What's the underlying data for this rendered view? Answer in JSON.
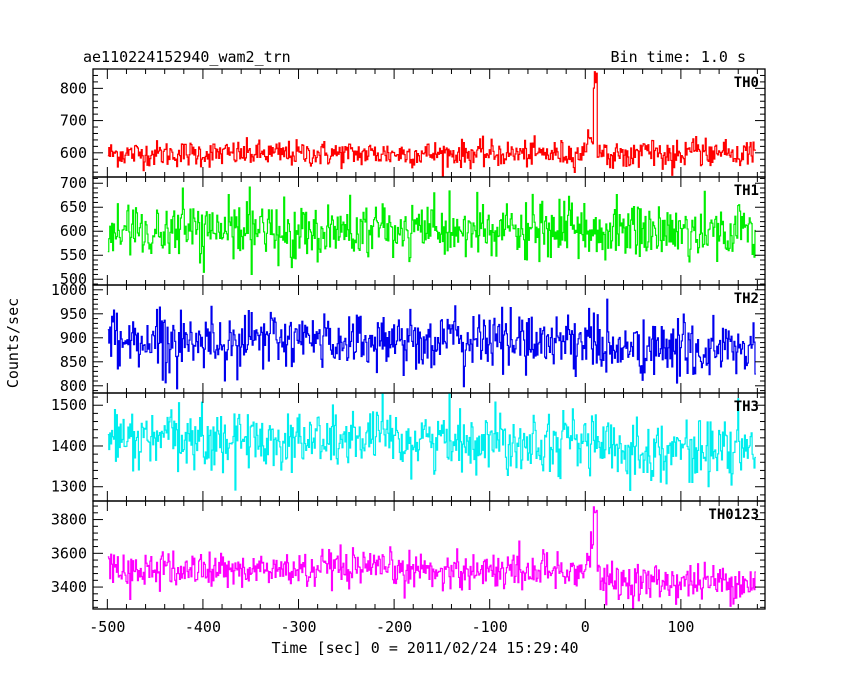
{
  "header": {
    "left_title": "ae110224152940_wam2_trn",
    "right_title": "Bin time: 1.0 s"
  },
  "chart_data": {
    "type": "line",
    "xlabel": "Time [sec] 0 = 2011/02/24 15:29:40",
    "ylabel": "Counts/sec",
    "xlim": [
      -515,
      188
    ],
    "x_ticks": [
      -500,
      -400,
      -300,
      -200,
      -100,
      0,
      100
    ],
    "x_range_data": [
      -499,
      178
    ],
    "bin_time_s": 1.0,
    "panels": [
      {
        "name": "TH0",
        "color": "#ff0000",
        "ylim": [
          525,
          860
        ],
        "y_ticks": [
          600,
          700,
          800
        ],
        "baseline": 597,
        "noise": 20,
        "shift_after_burst": 0,
        "burst": {
          "peak_time": 10,
          "peak_value": 860,
          "pre_level": 680
        }
      },
      {
        "name": "TH1",
        "color": "#00ee00",
        "ylim": [
          488,
          713
        ],
        "y_ticks": [
          500,
          550,
          600,
          650,
          700
        ],
        "baseline": 600,
        "noise": 30,
        "shift_after_burst": 0,
        "burst": null
      },
      {
        "name": "TH2",
        "color": "#0000ee",
        "ylim": [
          785,
          1010
        ],
        "y_ticks": [
          800,
          850,
          900,
          950,
          1000
        ],
        "baseline": 895,
        "noise": 30,
        "shift_after_burst": -20,
        "burst": null
      },
      {
        "name": "TH3",
        "color": "#00eeee",
        "ylim": [
          1265,
          1530
        ],
        "y_ticks": [
          1300,
          1400,
          1500
        ],
        "baseline": 1415,
        "noise": 37,
        "shift_after_burst": -25,
        "burst": null
      },
      {
        "name": "TH0123",
        "color": "#ff00ff",
        "ylim": [
          3270,
          3910
        ],
        "y_ticks": [
          3400,
          3600,
          3800
        ],
        "baseline": 3500,
        "noise": 55,
        "shift_after_burst": -70,
        "burst": {
          "peak_time": 10,
          "peak_value": 3900,
          "pre_level": 3650
        }
      }
    ]
  }
}
